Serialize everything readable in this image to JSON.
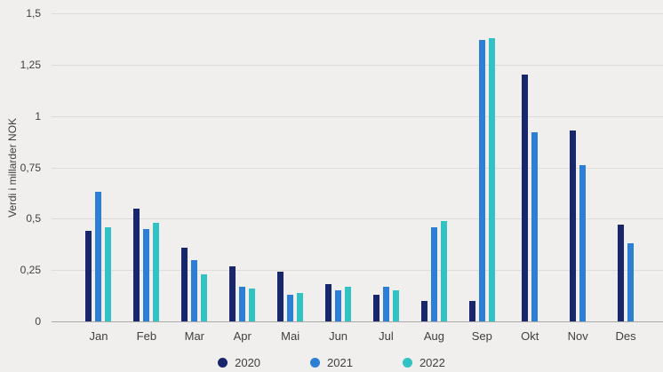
{
  "chart_data": {
    "type": "bar",
    "title": "",
    "xlabel": "",
    "ylabel": "Verdi i millarder NOK",
    "ylim": [
      0,
      1.5
    ],
    "grid": true,
    "legend_position": "bottom",
    "yticks": [
      "1,5",
      "1,25",
      "1",
      "0,75",
      "0,5",
      "0,25",
      "0"
    ],
    "ytick_values": [
      1.5,
      1.25,
      1,
      0.75,
      0.5,
      0.25,
      0
    ],
    "categories": [
      "Jan",
      "Feb",
      "Mar",
      "Apr",
      "Mai",
      "Jun",
      "Jul",
      "Aug",
      "Sep",
      "Okt",
      "Nov",
      "Des"
    ],
    "series": [
      {
        "name": "2020",
        "color": "#18266b",
        "values": [
          0.44,
          0.55,
          0.36,
          0.27,
          0.24,
          0.18,
          0.13,
          0.1,
          0.1,
          1.2,
          0.93,
          0.47
        ]
      },
      {
        "name": "2021",
        "color": "#2d7fd6",
        "values": [
          0.63,
          0.45,
          0.3,
          0.17,
          0.13,
          0.15,
          0.17,
          0.46,
          1.37,
          0.92,
          0.76,
          0.38
        ]
      },
      {
        "name": "2022",
        "color": "#32c2c4",
        "values": [
          0.46,
          0.48,
          0.23,
          0.16,
          0.14,
          0.17,
          0.15,
          0.49,
          1.38,
          null,
          null,
          null
        ]
      }
    ]
  }
}
